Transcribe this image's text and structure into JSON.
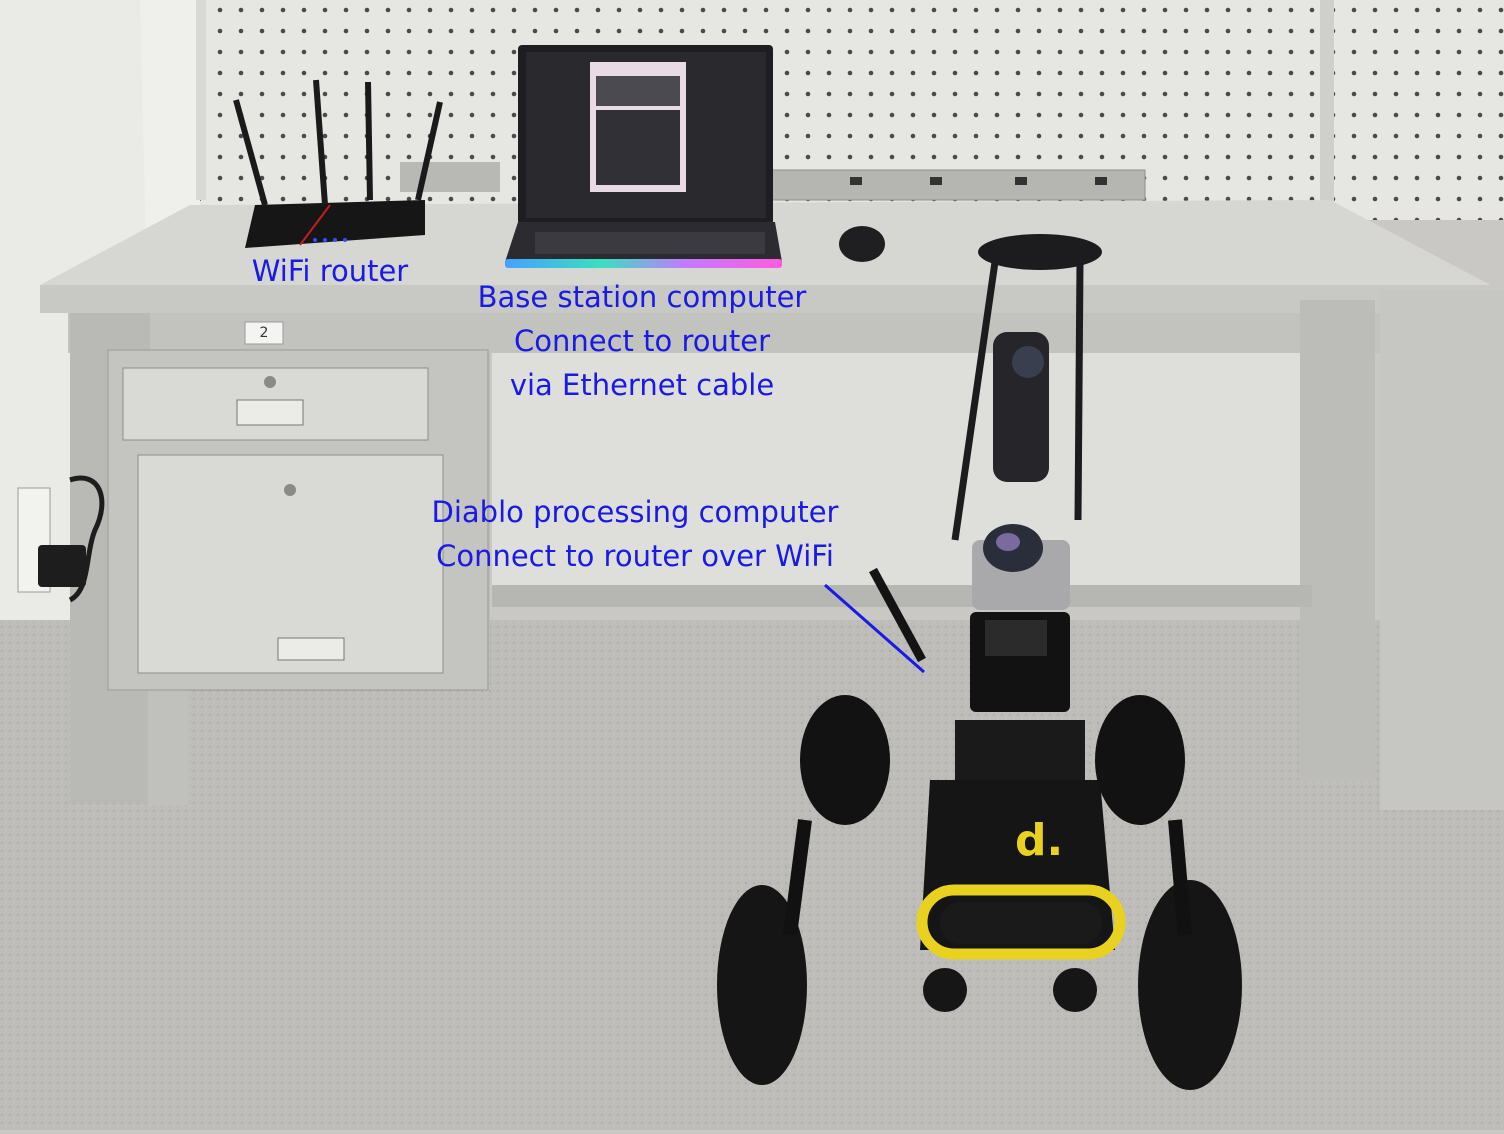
{
  "annotations": {
    "router": "WiFi router",
    "base_station": [
      "Base station computer",
      "Connect to router",
      "via Ethernet cable"
    ],
    "diablo": [
      "Diablo processing computer",
      "Connect to router over WiFi"
    ]
  },
  "scene": {
    "drawer_number": "2",
    "annotation_color": "#1a1ae6",
    "robot_accent_color": "#e8d21f",
    "objects": [
      "wall",
      "pegboard",
      "desk",
      "drawer-cabinet",
      "wifi-router",
      "laptop",
      "mouse",
      "power-strip",
      "wall-outlet",
      "robot",
      "360-camera",
      "lidar",
      "floor"
    ]
  }
}
